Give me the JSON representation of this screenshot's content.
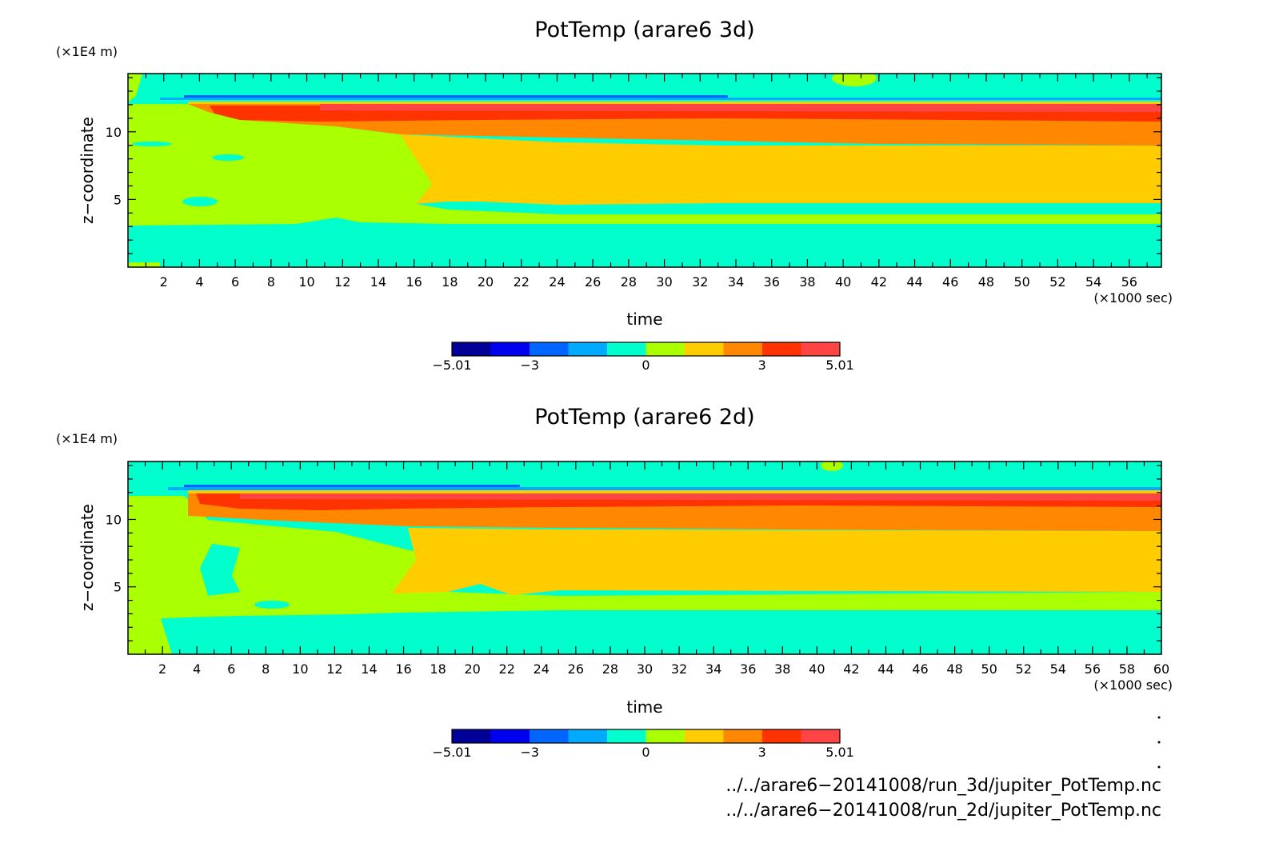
{
  "chart_data": [
    {
      "type": "heatmap",
      "title": "PotTemp (arare6 3d)",
      "xlabel": "time",
      "ylabel": "z−coordinate",
      "x_unit": "(×1000 sec)",
      "y_unit": "(×1E4 m)",
      "xlim": [
        0,
        57.8
      ],
      "ylim": [
        0,
        14.3
      ],
      "x_ticks": [
        "2",
        "4",
        "6",
        "8",
        "10",
        "12",
        "14",
        "16",
        "18",
        "20",
        "22",
        "24",
        "26",
        "28",
        "30",
        "32",
        "34",
        "36",
        "38",
        "40",
        "42",
        "44",
        "46",
        "48",
        "50",
        "52",
        "54",
        "56"
      ],
      "y_ticks": [
        "5",
        "10"
      ],
      "levels": [
        -5.01,
        -4,
        -3,
        -2,
        -1,
        0,
        1,
        2,
        3,
        4,
        5.01
      ],
      "colorbar_labels": [
        "−5.01",
        "−3",
        "0",
        "3",
        "5.01"
      ],
      "bands": [
        {
          "level": "1 to 2",
          "color": "#ffcc00",
          "x_from": 18,
          "z_from": 5.0,
          "z_to": 9.3
        },
        {
          "level": "2 to 3",
          "color": "#ff8800",
          "x_from": 4,
          "z_from": 9.3,
          "z_to": 12.0
        },
        {
          "level": "3 to 4",
          "color": "#ff3300",
          "x_from": 4,
          "z_from": 10.8,
          "z_to": 12.2
        },
        {
          "level": "-1 to 0",
          "color": "#00ffcc",
          "x_from": 0,
          "z_from": 0,
          "z_to": 3.2
        }
      ]
    },
    {
      "type": "heatmap",
      "title": "PotTemp (arare6 2d)",
      "xlabel": "time",
      "ylabel": "z−coordinate",
      "x_unit": "(×1000 sec)",
      "y_unit": "(×1E4 m)",
      "xlim": [
        0,
        60
      ],
      "ylim": [
        0,
        14.3
      ],
      "x_ticks": [
        "2",
        "4",
        "6",
        "8",
        "10",
        "12",
        "14",
        "16",
        "18",
        "20",
        "22",
        "24",
        "26",
        "28",
        "30",
        "32",
        "34",
        "36",
        "38",
        "40",
        "42",
        "44",
        "46",
        "48",
        "50",
        "52",
        "54",
        "56",
        "58",
        "60"
      ],
      "y_ticks": [
        "5",
        "10"
      ],
      "levels": [
        -5.01,
        -4,
        -3,
        -2,
        -1,
        0,
        1,
        2,
        3,
        4,
        5.01
      ],
      "colorbar_labels": [
        "−5.01",
        "−3",
        "0",
        "3",
        "5.01"
      ],
      "bands": [
        {
          "level": "1 to 2",
          "color": "#ffcc00",
          "x_from": 18,
          "z_from": 5.0,
          "z_to": 9.3
        },
        {
          "level": "2 to 3",
          "color": "#ff8800",
          "x_from": 4,
          "z_from": 9.3,
          "z_to": 11.6
        },
        {
          "level": "3 to 4",
          "color": "#ff3300",
          "x_from": 4,
          "z_from": 11.6,
          "z_to": 12.2
        },
        {
          "level": "-1 to 0",
          "color": "#00ffcc",
          "x_from": 0,
          "z_from": 0,
          "z_to": 3.2
        }
      ]
    }
  ],
  "palette": [
    "#000099",
    "#0000ee",
    "#0066ff",
    "#00aaff",
    "#00ffcc",
    "#aaff00",
    "#ffcc00",
    "#ff8800",
    "#ff3300",
    "#ff4444"
  ],
  "footer": {
    "file1": "../../arare6−20141008/run_3d/jupiter_PotTemp.nc",
    "file2": "../../arare6−20141008/run_2d/jupiter_PotTemp.nc"
  }
}
